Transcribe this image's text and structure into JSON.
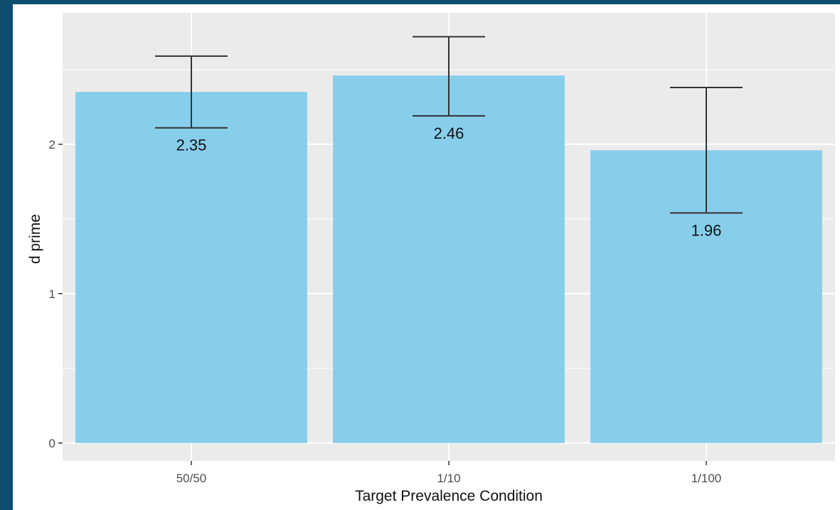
{
  "chart_data": {
    "type": "bar",
    "title": "",
    "xlabel": "Target Prevalence Condition",
    "ylabel": "d prime",
    "categories": [
      "50/50",
      "1/10",
      "1/100"
    ],
    "values": [
      2.35,
      2.46,
      1.96
    ],
    "value_labels": [
      "2.35",
      "2.46",
      "1.96"
    ],
    "error_bars": [
      {
        "low": 2.11,
        "high": 2.59
      },
      {
        "low": 2.19,
        "high": 2.72
      },
      {
        "low": 1.54,
        "high": 2.38
      }
    ],
    "yticks": [
      0,
      1,
      2
    ],
    "ytick_labels": [
      "0",
      "1",
      "2"
    ],
    "ylim": [
      -0.12,
      2.88
    ],
    "grid": true,
    "colors": {
      "bar": "#87ceeb",
      "panel": "#ebebeb",
      "grid": "#ffffff",
      "errorbar": "#333333",
      "outer_frame": "#0c4d6e"
    }
  }
}
